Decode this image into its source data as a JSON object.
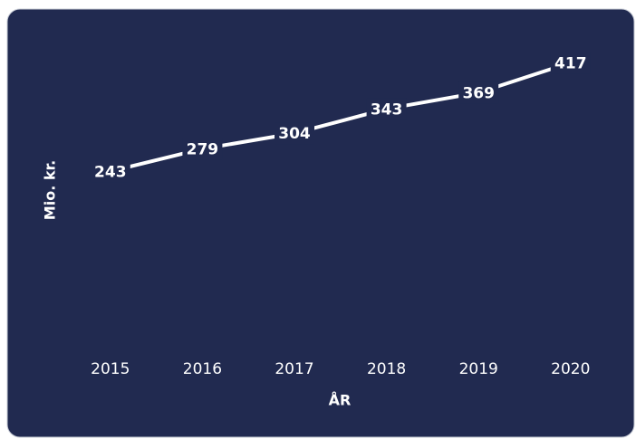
{
  "chart_data": {
    "type": "line",
    "x_label": "ÅR",
    "y_label": "Mio. kr.",
    "categories": [
      "2015",
      "2016",
      "2017",
      "2018",
      "2019",
      "2020"
    ],
    "values": [
      243,
      279,
      304,
      343,
      369,
      417
    ],
    "color": "#ffffff",
    "background": "#212a50",
    "ylim": [
      0,
      500
    ],
    "drop_lines": true
  }
}
